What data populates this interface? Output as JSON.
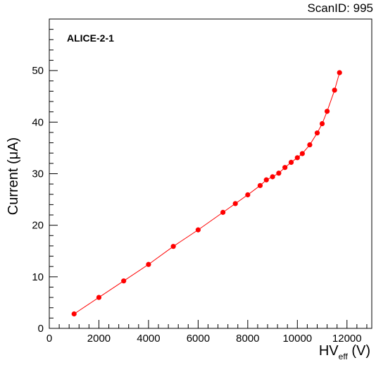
{
  "header": {
    "scan_id": "ScanID: 995"
  },
  "chart_data": {
    "type": "line",
    "title": "",
    "annotation": "ALICE-2-1",
    "xlabel": {
      "main": "HV",
      "sub": "eff",
      "unit": " (V)"
    },
    "ylabel": "Current (μA)",
    "xlim": [
      0,
      13000
    ],
    "ylim": [
      0,
      60
    ],
    "x_ticks": [
      0,
      2000,
      4000,
      6000,
      8000,
      10000,
      12000
    ],
    "y_ticks": [
      0,
      10,
      20,
      30,
      40,
      50
    ],
    "grid": false,
    "legend": "none",
    "colors": {
      "series": "#ff0000",
      "axis": "#000000"
    },
    "series": [
      {
        "marker": "circle",
        "x": [
          1000,
          2000,
          3000,
          4000,
          5000,
          6000,
          7000,
          7500,
          8000,
          8500,
          8750,
          9000,
          9250,
          9500,
          9750,
          10000,
          10200,
          10500,
          10800,
          11000,
          11200,
          11500,
          11700
        ],
        "y": [
          2.8,
          6.0,
          9.2,
          12.4,
          15.9,
          19.1,
          22.5,
          24.2,
          25.9,
          27.7,
          28.8,
          29.4,
          30.1,
          31.2,
          32.2,
          33.1,
          33.9,
          35.6,
          37.9,
          39.7,
          42.1,
          46.2,
          49.6
        ]
      }
    ]
  }
}
